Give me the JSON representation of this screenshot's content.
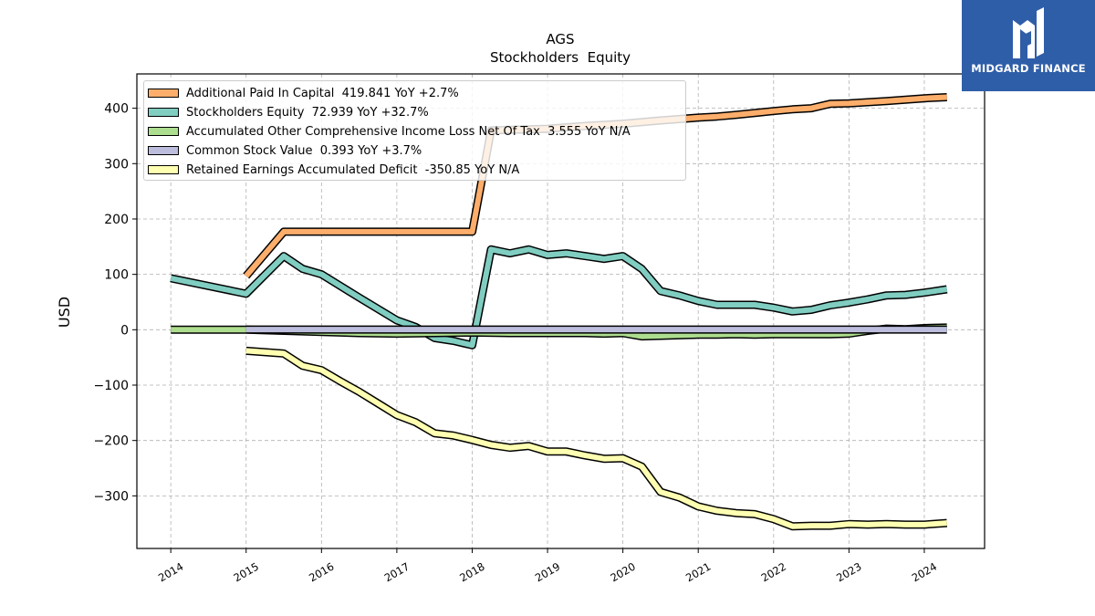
{
  "brand": {
    "logo_text": "MIDGARD FINANCE",
    "color": "#2f5ea8"
  },
  "chart_data": {
    "type": "line",
    "title": "AGS",
    "subtitle": "Stockholders  Equity",
    "ylabel": "USD",
    "xlabel": "",
    "xlim": [
      2013.55,
      2024.8
    ],
    "ylim": [
      -395,
      462
    ],
    "x_ticks": [
      2014,
      2015,
      2016,
      2017,
      2018,
      2019,
      2020,
      2021,
      2022,
      2023,
      2024
    ],
    "y_ticks": [
      -300,
      -200,
      -100,
      0,
      100,
      200,
      300,
      400
    ],
    "y_tick_labels": [
      "−300",
      "−200",
      "−100",
      "0",
      "100",
      "200",
      "300",
      "400"
    ],
    "grid": true,
    "legend_position": "upper-left",
    "series": [
      {
        "name": "Additional Paid In Capital",
        "legend_label": "Additional Paid In Capital  419.841 YoY +2.7%",
        "color": "#fdae6b",
        "points": [
          [
            2015.0,
            97
          ],
          [
            2015.5,
            177
          ],
          [
            2016.0,
            177
          ],
          [
            2017.0,
            177
          ],
          [
            2018.0,
            177
          ],
          [
            2018.25,
            360
          ],
          [
            2019.0,
            363
          ],
          [
            2019.5,
            368
          ],
          [
            2020.0,
            372
          ],
          [
            2020.5,
            378
          ],
          [
            2021.0,
            383
          ],
          [
            2021.25,
            385
          ],
          [
            2021.5,
            388
          ],
          [
            2022.0,
            395
          ],
          [
            2022.25,
            398
          ],
          [
            2022.5,
            400
          ],
          [
            2022.75,
            408
          ],
          [
            2023.0,
            409
          ],
          [
            2023.5,
            413
          ],
          [
            2024.0,
            418
          ],
          [
            2024.3,
            420
          ]
        ]
      },
      {
        "name": "Stockholders Equity",
        "legend_label": "Stockholders Equity  72.939 YoY +32.7%",
        "color": "#80cdc1",
        "points": [
          [
            2014.0,
            93
          ],
          [
            2015.0,
            65
          ],
          [
            2015.5,
            133
          ],
          [
            2015.75,
            110
          ],
          [
            2016.0,
            100
          ],
          [
            2016.5,
            58
          ],
          [
            2017.0,
            17
          ],
          [
            2017.25,
            5
          ],
          [
            2017.5,
            -15
          ],
          [
            2017.75,
            -20
          ],
          [
            2018.0,
            -28
          ],
          [
            2018.25,
            145
          ],
          [
            2018.5,
            138
          ],
          [
            2018.75,
            145
          ],
          [
            2019.0,
            135
          ],
          [
            2019.25,
            138
          ],
          [
            2019.5,
            133
          ],
          [
            2019.75,
            128
          ],
          [
            2020.0,
            133
          ],
          [
            2020.25,
            110
          ],
          [
            2020.5,
            70
          ],
          [
            2020.75,
            62
          ],
          [
            2021.0,
            52
          ],
          [
            2021.25,
            45
          ],
          [
            2021.5,
            45
          ],
          [
            2021.75,
            45
          ],
          [
            2022.0,
            40
          ],
          [
            2022.25,
            33
          ],
          [
            2022.5,
            36
          ],
          [
            2022.75,
            44
          ],
          [
            2023.0,
            49
          ],
          [
            2023.25,
            55
          ],
          [
            2023.5,
            62
          ],
          [
            2023.75,
            63
          ],
          [
            2024.0,
            67
          ],
          [
            2024.3,
            73
          ]
        ]
      },
      {
        "name": "Accumulated Other Comprehensive Income Loss Net Of Tax",
        "legend_label": "Accumulated Other Comprehensive Income Loss Net Of Tax  3.555 YoY N/A",
        "color": "#addd8e",
        "points": [
          [
            2014.0,
            0
          ],
          [
            2015.0,
            0
          ],
          [
            2015.5,
            -2
          ],
          [
            2016.0,
            -4
          ],
          [
            2016.5,
            -6
          ],
          [
            2017.0,
            -7
          ],
          [
            2017.5,
            -6
          ],
          [
            2018.0,
            -5
          ],
          [
            2018.5,
            -6
          ],
          [
            2019.0,
            -6
          ],
          [
            2019.5,
            -6
          ],
          [
            2019.75,
            -7
          ],
          [
            2020.0,
            -6
          ],
          [
            2020.25,
            -12
          ],
          [
            2020.5,
            -11
          ],
          [
            2020.75,
            -10
          ],
          [
            2021.0,
            -9
          ],
          [
            2021.25,
            -9
          ],
          [
            2021.5,
            -8
          ],
          [
            2021.75,
            -9
          ],
          [
            2022.0,
            -8
          ],
          [
            2022.25,
            -8
          ],
          [
            2022.5,
            -8
          ],
          [
            2022.75,
            -8
          ],
          [
            2023.0,
            -7
          ],
          [
            2023.25,
            -2
          ],
          [
            2023.5,
            2
          ],
          [
            2023.75,
            1
          ],
          [
            2024.0,
            3
          ],
          [
            2024.3,
            4
          ]
        ]
      },
      {
        "name": "Common Stock Value",
        "legend_label": "Common Stock Value  0.393 YoY +3.7%",
        "color": "#bcbddc",
        "points": [
          [
            2015.0,
            0.3
          ],
          [
            2016.0,
            0.3
          ],
          [
            2017.0,
            0.3
          ],
          [
            2018.0,
            0.4
          ],
          [
            2019.0,
            0.4
          ],
          [
            2020.0,
            0.4
          ],
          [
            2021.0,
            0.4
          ],
          [
            2022.0,
            0.4
          ],
          [
            2023.0,
            0.4
          ],
          [
            2024.3,
            0.4
          ]
        ]
      },
      {
        "name": "Retained Earnings Accumulated Deficit",
        "legend_label": "Retained Earnings Accumulated Deficit  -350.85 YoY N/A",
        "color": "#ffffb2",
        "points": [
          [
            2015.0,
            -38
          ],
          [
            2015.5,
            -43
          ],
          [
            2015.75,
            -65
          ],
          [
            2016.0,
            -73
          ],
          [
            2016.25,
            -93
          ],
          [
            2016.5,
            -112
          ],
          [
            2016.75,
            -133
          ],
          [
            2017.0,
            -154
          ],
          [
            2017.25,
            -167
          ],
          [
            2017.5,
            -187
          ],
          [
            2017.75,
            -191
          ],
          [
            2018.0,
            -199
          ],
          [
            2018.25,
            -208
          ],
          [
            2018.5,
            -213
          ],
          [
            2018.75,
            -210
          ],
          [
            2019.0,
            -220
          ],
          [
            2019.25,
            -220
          ],
          [
            2019.5,
            -227
          ],
          [
            2019.75,
            -233
          ],
          [
            2020.0,
            -232
          ],
          [
            2020.25,
            -247
          ],
          [
            2020.5,
            -293
          ],
          [
            2020.75,
            -303
          ],
          [
            2021.0,
            -319
          ],
          [
            2021.25,
            -327
          ],
          [
            2021.5,
            -331
          ],
          [
            2021.75,
            -333
          ],
          [
            2022.0,
            -342
          ],
          [
            2022.25,
            -355
          ],
          [
            2022.5,
            -354
          ],
          [
            2022.75,
            -354
          ],
          [
            2023.0,
            -351
          ],
          [
            2023.25,
            -352
          ],
          [
            2023.5,
            -351
          ],
          [
            2023.75,
            -352
          ],
          [
            2024.0,
            -352
          ],
          [
            2024.3,
            -349
          ]
        ]
      }
    ]
  }
}
